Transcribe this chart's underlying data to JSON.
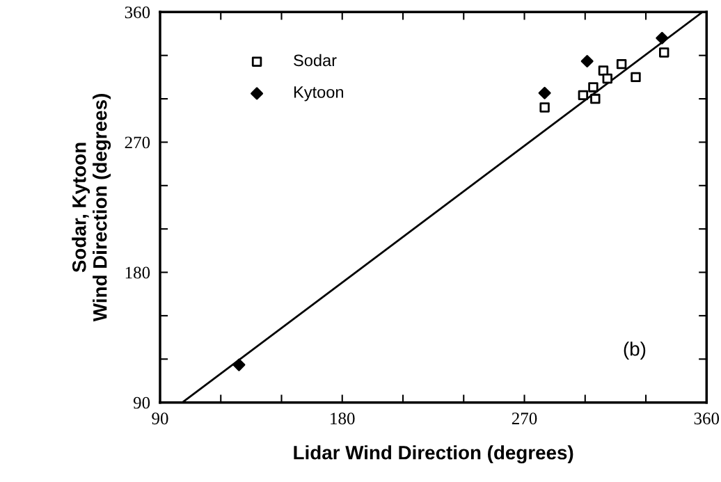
{
  "chart_data": {
    "type": "scatter",
    "xlabel": "Lidar Wind Direction (degrees)",
    "ylabel": "Sodar, Kytoon\nWind Direction (degrees)",
    "annotations": [
      "(b)"
    ],
    "xlim": [
      90,
      360
    ],
    "ylim": [
      90,
      360
    ],
    "xticks": [
      90,
      {
        "value": 120,
        "label": null
      },
      {
        "value": 150,
        "label": null
      },
      180,
      {
        "value": 210,
        "label": null
      },
      {
        "value": 240,
        "label": null
      },
      270,
      {
        "value": 300,
        "label": null
      },
      {
        "value": 330,
        "label": null
      },
      360
    ],
    "yticks": [
      90,
      {
        "value": 120,
        "label": null
      },
      {
        "value": 150,
        "label": null
      },
      180,
      {
        "value": 210,
        "label": null
      },
      {
        "value": 240,
        "label": null
      },
      270,
      {
        "value": 300,
        "label": null
      },
      {
        "value": 330,
        "label": null
      },
      360
    ],
    "grid": false,
    "legend": "top left",
    "series": [
      {
        "name": "Sodar",
        "color": "#000000",
        "marker": "square",
        "x": [
          280,
          299,
          304,
          305,
          309,
          311,
          318,
          325,
          339
        ],
        "values": [
          294,
          302.5,
          308,
          300,
          319.5,
          314,
          324,
          315,
          332
        ]
      },
      {
        "name": "Kytoon",
        "color": "#000000",
        "marker": "diamond",
        "x": [
          280,
          301,
          338,
          129
        ],
        "values": [
          304,
          326,
          342,
          116
        ]
      },
      {
        "type": "line",
        "color": "#000000",
        "marker": "none",
        "line_style": "solid",
        "x": [
          101,
          358
        ],
        "values": [
          90,
          360
        ]
      }
    ]
  }
}
